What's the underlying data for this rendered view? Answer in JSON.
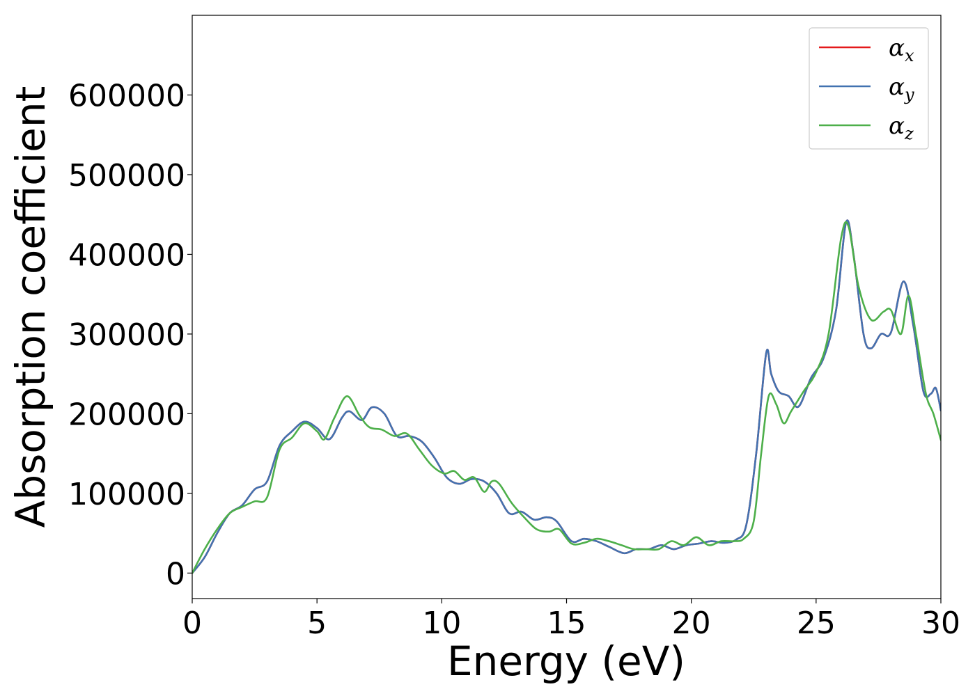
{
  "chart_data": {
    "type": "line",
    "xlabel": "Energy (eV)",
    "ylabel": "Absorption coefficient",
    "xlim": [
      0,
      30
    ],
    "ylim": [
      -32000,
      700000
    ],
    "xticks": [
      "0",
      "5",
      "10",
      "15",
      "20",
      "25",
      "30"
    ],
    "yticks": [
      "0",
      "100000",
      "200000",
      "300000",
      "400000",
      "500000",
      "600000"
    ],
    "grid": false,
    "legend_position": "top-right",
    "series": [
      {
        "name": "α_x",
        "symbol": "α",
        "subscript": "x",
        "color": "#e41a1c",
        "x": [
          0,
          0.5,
          1,
          1.5,
          2,
          2.5,
          3,
          3.5,
          4,
          4.5,
          5,
          5.5,
          6,
          6.3,
          6.8,
          7.2,
          7.7,
          8.2,
          8.7,
          9.2,
          9.7,
          10.2,
          10.7,
          11.2,
          11.7,
          12.2,
          12.7,
          13.2,
          13.7,
          14.2,
          14.6,
          15.2,
          15.7,
          16.2,
          16.7,
          17.3,
          17.8,
          18.3,
          18.8,
          19.3,
          19.8,
          20.3,
          20.8,
          21.3,
          21.8,
          22.2,
          22.6,
          23.0,
          23.2,
          23.5,
          23.9,
          24.3,
          24.8,
          25.3,
          25.8,
          26.2,
          26.5,
          26.9,
          27.2,
          27.6,
          28.0,
          28.5,
          28.9,
          29.3,
          29.6,
          29.8,
          30.0
        ],
        "y": [
          0,
          20000,
          50000,
          75000,
          85000,
          105000,
          115000,
          160000,
          178000,
          190000,
          182000,
          168000,
          195000,
          203000,
          192000,
          208000,
          200000,
          172000,
          172000,
          165000,
          145000,
          120000,
          112000,
          118000,
          115000,
          100000,
          75000,
          77000,
          67000,
          70000,
          65000,
          40000,
          43000,
          40000,
          33000,
          25000,
          30000,
          30000,
          35000,
          30000,
          35000,
          37000,
          40000,
          38000,
          42000,
          60000,
          150000,
          276000,
          250000,
          228000,
          222000,
          209000,
          245000,
          270000,
          330000,
          440000,
          400000,
          300000,
          282000,
          300000,
          302000,
          366000,
          310000,
          228000,
          225000,
          232000,
          204000
        ]
      },
      {
        "name": "α_y",
        "symbol": "α",
        "subscript": "y",
        "color": "#4272b0",
        "x": [
          0,
          0.5,
          1,
          1.5,
          2,
          2.5,
          3,
          3.5,
          4,
          4.5,
          5,
          5.5,
          6,
          6.3,
          6.8,
          7.2,
          7.7,
          8.2,
          8.7,
          9.2,
          9.7,
          10.2,
          10.7,
          11.2,
          11.7,
          12.2,
          12.7,
          13.2,
          13.7,
          14.2,
          14.6,
          15.2,
          15.7,
          16.2,
          16.7,
          17.3,
          17.8,
          18.3,
          18.8,
          19.3,
          19.8,
          20.3,
          20.8,
          21.3,
          21.8,
          22.2,
          22.6,
          23.0,
          23.2,
          23.5,
          23.9,
          24.3,
          24.8,
          25.3,
          25.8,
          26.2,
          26.5,
          26.9,
          27.2,
          27.6,
          28.0,
          28.5,
          28.9,
          29.3,
          29.6,
          29.8,
          30.0
        ],
        "y": [
          0,
          20000,
          50000,
          75000,
          85000,
          105000,
          115000,
          160000,
          178000,
          190000,
          182000,
          168000,
          195000,
          203000,
          192000,
          208000,
          200000,
          172000,
          172000,
          165000,
          145000,
          120000,
          112000,
          118000,
          115000,
          100000,
          75000,
          77000,
          67000,
          70000,
          65000,
          40000,
          43000,
          40000,
          33000,
          25000,
          30000,
          30000,
          35000,
          30000,
          35000,
          37000,
          40000,
          38000,
          42000,
          60000,
          150000,
          276000,
          250000,
          228000,
          222000,
          209000,
          245000,
          270000,
          330000,
          440000,
          400000,
          300000,
          282000,
          300000,
          302000,
          366000,
          310000,
          228000,
          225000,
          232000,
          204000
        ]
      },
      {
        "name": "α_z",
        "symbol": "α",
        "subscript": "z",
        "color": "#4daf4a",
        "x": [
          0,
          0.5,
          1,
          1.5,
          2,
          2.5,
          3,
          3.5,
          4,
          4.5,
          5,
          5.3,
          5.7,
          6.2,
          6.7,
          7.1,
          7.6,
          8.1,
          8.6,
          9.1,
          9.6,
          10.1,
          10.5,
          10.9,
          11.3,
          11.7,
          12.0,
          12.3,
          12.8,
          13.3,
          13.8,
          14.3,
          14.7,
          15.2,
          15.7,
          16.2,
          16.7,
          17.2,
          17.7,
          18.2,
          18.7,
          19.2,
          19.7,
          20.2,
          20.7,
          21.2,
          21.7,
          22.1,
          22.5,
          22.8,
          23.1,
          23.4,
          23.7,
          24.0,
          24.5,
          25.0,
          25.5,
          26.0,
          26.3,
          26.7,
          27.2,
          27.7,
          28.0,
          28.4,
          28.7,
          29.0,
          29.4,
          29.7,
          30.0
        ],
        "y": [
          0,
          30000,
          55000,
          75000,
          83000,
          90000,
          95000,
          155000,
          170000,
          188000,
          178000,
          168000,
          195000,
          222000,
          198000,
          183000,
          180000,
          172000,
          175000,
          155000,
          135000,
          125000,
          128000,
          117000,
          120000,
          102000,
          115000,
          112000,
          88000,
          70000,
          55000,
          52000,
          55000,
          37000,
          38000,
          43000,
          40000,
          35000,
          30000,
          30000,
          30000,
          40000,
          35000,
          45000,
          35000,
          40000,
          40000,
          43000,
          65000,
          150000,
          222000,
          212000,
          188000,
          203000,
          228000,
          252000,
          300000,
          420000,
          435000,
          360000,
          318000,
          328000,
          330000,
          300000,
          348000,
          300000,
          225000,
          200000,
          167000
        ]
      }
    ]
  }
}
